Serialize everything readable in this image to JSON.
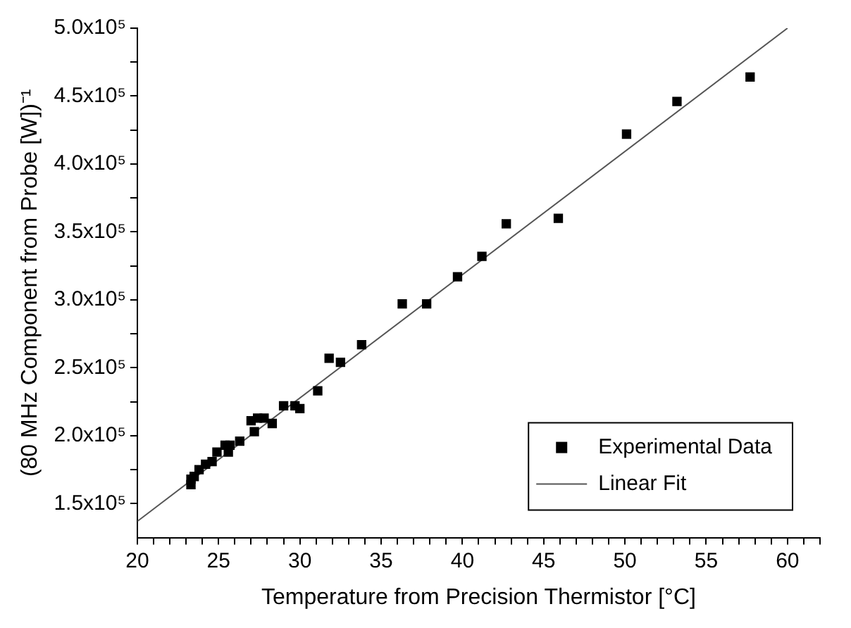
{
  "chart_data": {
    "type": "scatter",
    "xlabel": "Temperature from Precision Thermistor [°C]",
    "ylabel": "(80 MHz Component from Probe [W])⁻¹",
    "xlim": [
      20,
      62
    ],
    "ylim": [
      125000,
      500000
    ],
    "xticks": [
      20,
      {
        "value": 21,
        "label": null
      },
      {
        "value": 22,
        "label": null
      },
      {
        "value": 23,
        "label": null
      },
      {
        "value": 24,
        "label": null
      },
      25,
      {
        "value": 26,
        "label": null
      },
      {
        "value": 27,
        "label": null
      },
      {
        "value": 28,
        "label": null
      },
      {
        "value": 29,
        "label": null
      },
      30,
      {
        "value": 31,
        "label": null
      },
      {
        "value": 32,
        "label": null
      },
      {
        "value": 33,
        "label": null
      },
      {
        "value": 34,
        "label": null
      },
      35,
      {
        "value": 36,
        "label": null
      },
      {
        "value": 37,
        "label": null
      },
      {
        "value": 38,
        "label": null
      },
      {
        "value": 39,
        "label": null
      },
      40,
      {
        "value": 41,
        "label": null
      },
      {
        "value": 42,
        "label": null
      },
      {
        "value": 43,
        "label": null
      },
      {
        "value": 44,
        "label": null
      },
      45,
      {
        "value": 46,
        "label": null
      },
      {
        "value": 47,
        "label": null
      },
      {
        "value": 48,
        "label": null
      },
      {
        "value": 49,
        "label": null
      },
      50,
      {
        "value": 51,
        "label": null
      },
      {
        "value": 52,
        "label": null
      },
      {
        "value": 53,
        "label": null
      },
      {
        "value": 54,
        "label": null
      },
      55,
      {
        "value": 56,
        "label": null
      },
      {
        "value": 57,
        "label": null
      },
      {
        "value": 58,
        "label": null
      },
      {
        "value": 59,
        "label": null
      },
      60,
      {
        "value": 61,
        "label": null
      },
      {
        "value": 62,
        "label": null
      }
    ],
    "yticks": [
      {
        "value": 150000,
        "label": "1.5x10⁵"
      },
      {
        "value": 175000,
        "label": null
      },
      {
        "value": 200000,
        "label": "2.0x10⁵"
      },
      {
        "value": 225000,
        "label": null
      },
      {
        "value": 250000,
        "label": "2.5x10⁵"
      },
      {
        "value": 275000,
        "label": null
      },
      {
        "value": 300000,
        "label": "3.0x10⁵"
      },
      {
        "value": 325000,
        "label": null
      },
      {
        "value": 350000,
        "label": "3.5x10⁵"
      },
      {
        "value": 375000,
        "label": null
      },
      {
        "value": 400000,
        "label": "4.0x10⁵"
      },
      {
        "value": 425000,
        "label": null
      },
      {
        "value": 450000,
        "label": "4.5x10⁵"
      },
      {
        "value": 475000,
        "label": null
      },
      {
        "value": 500000,
        "label": "5.0x10⁵"
      }
    ],
    "grid": false,
    "legend": "bottom right",
    "series": [
      {
        "name": "Experimental Data",
        "type": "scatter",
        "marker": "square",
        "color": "#000000",
        "x": [
          23.3,
          23.3,
          23.5,
          23.8,
          24.2,
          24.6,
          24.9,
          25.6,
          25.4,
          25.7,
          26.3,
          27.2,
          27.0,
          27.4,
          27.8,
          28.3,
          29.0,
          29.7,
          30.0,
          31.1,
          31.8,
          32.5,
          33.8,
          36.3,
          37.8,
          39.7,
          41.2,
          42.7,
          45.9,
          50.1,
          53.2,
          57.7
        ],
        "values": [
          164000,
          168000,
          170000,
          175000,
          179000,
          181000,
          188000,
          188000,
          193000,
          193000,
          196000,
          203000,
          211000,
          213000,
          213000,
          209000,
          222000,
          222000,
          220000,
          233000,
          257000,
          254000,
          267000,
          297000,
          297000,
          317000,
          332000,
          356000,
          360000,
          422000,
          446000,
          464000
        ]
      },
      {
        "name": "Linear Fit",
        "type": "line",
        "marker": "none",
        "line_style": "solid",
        "color": "#555555",
        "x": [
          20,
          60
        ],
        "values": [
          137000,
          500000
        ]
      }
    ]
  }
}
